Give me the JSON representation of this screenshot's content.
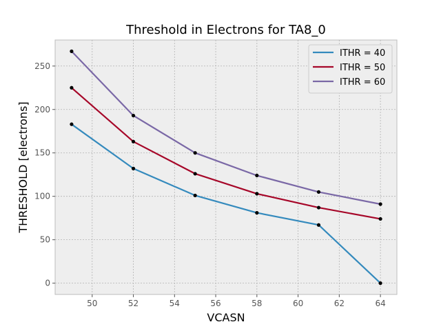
{
  "chart_data": {
    "type": "line",
    "title": "Threshold in Electrons for TA8_0",
    "xlabel": "VCASN",
    "ylabel": "THRESHOLD [electrons]",
    "x": [
      49,
      52,
      55,
      58,
      61,
      64
    ],
    "xlim": [
      48.2,
      64.8
    ],
    "ylim": [
      -13,
      280
    ],
    "xticks": [
      50,
      52,
      54,
      56,
      58,
      60,
      62,
      64
    ],
    "yticks": [
      0,
      50,
      100,
      150,
      200,
      250
    ],
    "grid": true,
    "legend_position": "top-right",
    "series": [
      {
        "name": "ITHR = 40",
        "color": "#348abd",
        "values": [
          183,
          132,
          101,
          81,
          67,
          0
        ]
      },
      {
        "name": "ITHR = 50",
        "color": "#a60628",
        "values": [
          225,
          163,
          126,
          103,
          87,
          74
        ]
      },
      {
        "name": "ITHR = 60",
        "color": "#7a68a6",
        "values": [
          267,
          193,
          150,
          124,
          105,
          91
        ]
      }
    ],
    "marker_color": "#000000",
    "plot_background": "#eeeeee",
    "grid_color": "#b2b2b2"
  }
}
